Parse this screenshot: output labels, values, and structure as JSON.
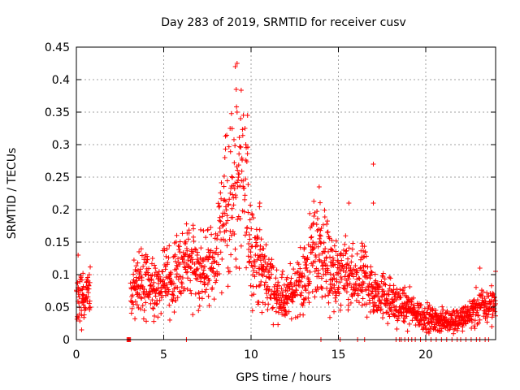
{
  "chart_data": {
    "type": "scatter",
    "title": "Day 283 of 2019, SRMTID for receiver cusv",
    "xlabel": "GPS time / hours",
    "ylabel": "SRMTID / TECUs",
    "xlim": [
      0,
      24
    ],
    "ylim": [
      0,
      0.45
    ],
    "xticks": [
      "0",
      "5",
      "10",
      "15",
      "20"
    ],
    "xtick_values": [
      0,
      5,
      10,
      15,
      20
    ],
    "yticks": [
      "0",
      "0.05",
      "0.1",
      "0.15",
      "0.2",
      "0.25",
      "0.3",
      "0.35",
      "0.4",
      "0.45"
    ],
    "ytick_values": [
      0,
      0.05,
      0.1,
      0.15,
      0.2,
      0.25,
      0.3,
      0.35,
      0.4,
      0.45
    ],
    "grid": true,
    "marker": "+",
    "marker_color": "#ff0000",
    "series": [
      {
        "name": "SRMTID",
        "trend": [
          [
            0.0,
            0.07
          ],
          [
            0.5,
            0.06
          ],
          [
            0.8,
            0.08
          ],
          [
            3.1,
            0.07
          ],
          [
            3.5,
            0.08
          ],
          [
            4.0,
            0.09
          ],
          [
            4.5,
            0.08
          ],
          [
            5.0,
            0.08
          ],
          [
            5.5,
            0.09
          ],
          [
            6.0,
            0.11
          ],
          [
            6.5,
            0.12
          ],
          [
            7.0,
            0.1
          ],
          [
            7.5,
            0.11
          ],
          [
            8.0,
            0.12
          ],
          [
            8.3,
            0.16
          ],
          [
            8.6,
            0.21
          ],
          [
            9.0,
            0.23
          ],
          [
            9.3,
            0.24
          ],
          [
            9.6,
            0.22
          ],
          [
            10.0,
            0.15
          ],
          [
            10.5,
            0.12
          ],
          [
            11.0,
            0.09
          ],
          [
            11.5,
            0.07
          ],
          [
            12.0,
            0.06
          ],
          [
            12.5,
            0.08
          ],
          [
            13.0,
            0.09
          ],
          [
            13.5,
            0.13
          ],
          [
            14.0,
            0.14
          ],
          [
            14.5,
            0.11
          ],
          [
            15.0,
            0.09
          ],
          [
            15.5,
            0.1
          ],
          [
            16.0,
            0.08
          ],
          [
            16.5,
            0.1
          ],
          [
            17.0,
            0.07
          ],
          [
            17.5,
            0.07
          ],
          [
            18.0,
            0.06
          ],
          [
            18.5,
            0.05
          ],
          [
            19.0,
            0.05
          ],
          [
            19.5,
            0.04
          ],
          [
            20.0,
            0.035
          ],
          [
            20.5,
            0.03
          ],
          [
            21.0,
            0.03
          ],
          [
            21.5,
            0.03
          ],
          [
            22.0,
            0.03
          ],
          [
            22.5,
            0.04
          ],
          [
            23.0,
            0.05
          ],
          [
            23.5,
            0.05
          ],
          [
            24.0,
            0.06
          ]
        ],
        "outliers": [
          [
            9.1,
            0.42
          ],
          [
            9.2,
            0.425
          ],
          [
            9.15,
            0.385
          ],
          [
            9.2,
            0.35
          ],
          [
            9.8,
            0.345
          ],
          [
            8.8,
            0.325
          ],
          [
            9.4,
            0.34
          ],
          [
            17.0,
            0.27
          ],
          [
            17.0,
            0.21
          ],
          [
            13.9,
            0.235
          ],
          [
            15.6,
            0.21
          ],
          [
            0.1,
            0.13
          ],
          [
            0.3,
            0.015
          ],
          [
            6.2,
            0.15
          ],
          [
            23.1,
            0.11
          ],
          [
            24.0,
            0.105
          ],
          [
            8.5,
            0.28
          ],
          [
            9.7,
            0.3
          ],
          [
            10.5,
            0.21
          ],
          [
            13.6,
            0.19
          ]
        ],
        "zero_points": [
          2.9,
          2.95,
          3.0,
          3.05,
          3.1,
          6.3,
          14.0,
          15.1,
          16.1,
          16.5,
          18.3,
          18.5,
          18.6,
          18.8,
          19.0,
          19.2,
          19.4,
          19.7,
          20.0,
          20.3,
          20.6,
          20.9,
          21.2,
          21.5,
          21.8,
          22.0,
          22.3,
          22.6,
          22.9,
          23.1,
          23.4,
          23.6
        ]
      }
    ]
  }
}
